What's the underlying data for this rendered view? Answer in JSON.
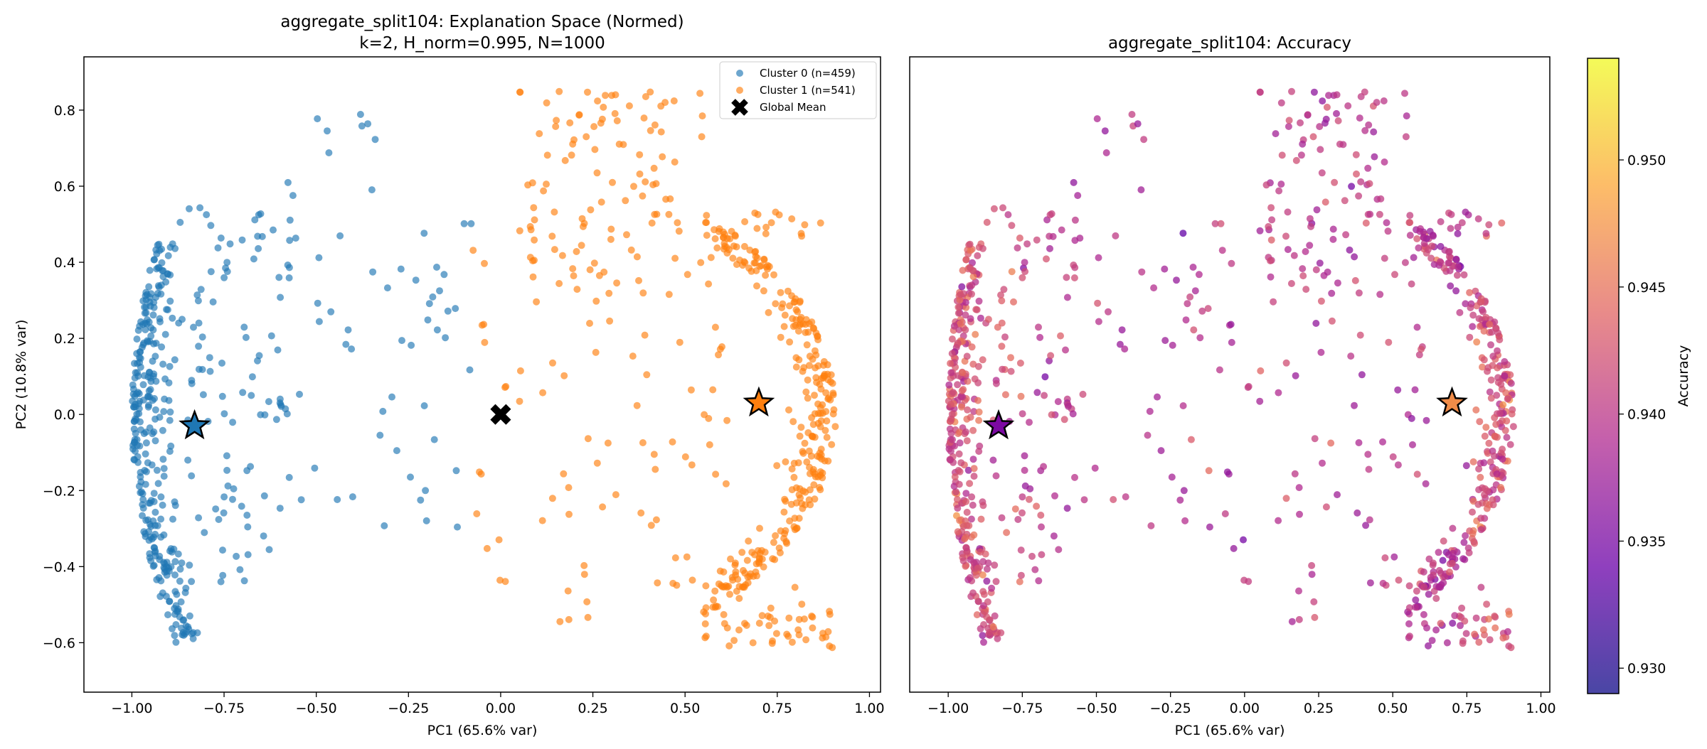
{
  "chart_data": [
    {
      "type": "scatter",
      "title_line1": "aggregate_split104: Explanation Space (Normed)",
      "title_line2": "k=2, H_norm=0.995, N=1000",
      "xlabel": "PC1 (65.6% var)",
      "ylabel": "PC2 (10.8% var)",
      "xlim": [
        -1.13,
        1.03
      ],
      "ylim": [
        -0.73,
        0.94
      ],
      "xticks": [
        -1.0,
        -0.75,
        -0.5,
        -0.25,
        0.0,
        0.25,
        0.5,
        0.75,
        1.0
      ],
      "xtick_labels": [
        "−1.00",
        "−0.75",
        "−0.50",
        "−0.25",
        "0.00",
        "0.25",
        "0.50",
        "0.75",
        "1.00"
      ],
      "yticks": [
        -0.6,
        -0.4,
        -0.2,
        0.0,
        0.2,
        0.4,
        0.6,
        0.8
      ],
      "ytick_labels": [
        "−0.6",
        "−0.4",
        "−0.2",
        "0.0",
        "0.2",
        "0.4",
        "0.6",
        "0.8"
      ],
      "series": [
        {
          "name": "Cluster 0 (n=459)",
          "color": "#1f77b4",
          "n": 459,
          "centroid": [
            -0.83,
            -0.03
          ]
        },
        {
          "name": "Cluster 1 (n=541)",
          "color": "#ff7f0e",
          "n": 541,
          "centroid": [
            0.7,
            0.03
          ]
        }
      ],
      "global_mean": {
        "name": "Global Mean",
        "x": 0.0,
        "y": 0.0,
        "color": "#000000"
      },
      "legend_position": "upper right"
    },
    {
      "type": "scatter",
      "title": "aggregate_split104: Accuracy",
      "xlabel": "PC1 (65.6% var)",
      "xlim": [
        -1.13,
        1.03
      ],
      "ylim": [
        -0.73,
        0.94
      ],
      "xticks": [
        -1.0,
        -0.75,
        -0.5,
        -0.25,
        0.0,
        0.25,
        0.5,
        0.75,
        1.0
      ],
      "xtick_labels": [
        "−1.00",
        "−0.75",
        "−0.50",
        "−0.25",
        "0.00",
        "0.25",
        "0.50",
        "0.75",
        "1.00"
      ],
      "colorbar": {
        "label": "Accuracy",
        "colormap": "plasma",
        "range": [
          0.929,
          0.954
        ],
        "ticks": [
          0.93,
          0.935,
          0.94,
          0.945,
          0.95
        ],
        "tick_labels": [
          "0.930",
          "0.935",
          "0.940",
          "0.945",
          "0.950"
        ]
      },
      "centroids": [
        [
          -0.83,
          -0.03
        ],
        [
          0.7,
          0.03
        ]
      ]
    }
  ]
}
